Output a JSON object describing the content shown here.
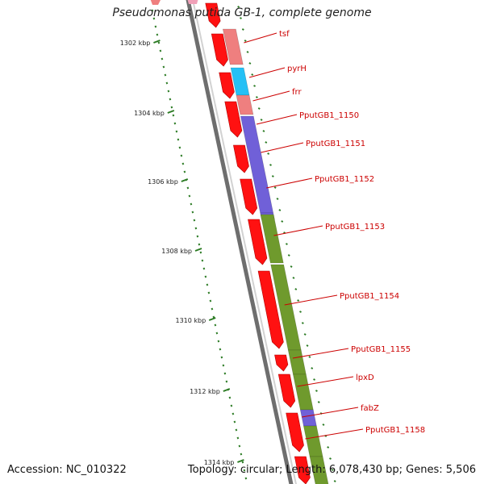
{
  "map": {
    "title": "Pseudomonas putida GB-1, complete genome",
    "accession": "Accession: NC_010322",
    "topology": "Topology: circular; Length: 6,078,430 bp; Genes: 5,506",
    "kbp_labels": [
      "1302 kbp",
      "1304 kbp",
      "1306 kbp",
      "1308 kbp",
      "1310 kbp",
      "1312 kbp",
      "1314 kbp"
    ],
    "colors": {
      "cds": "#ff1111",
      "backbone": "#888888",
      "label": "#cc0000",
      "tick": "#2a7a22",
      "cog_olive": "#6f9a2d",
      "cog_purple": "#7060d8",
      "cog_salmon": "#ef7f7f",
      "cog_cyan": "#25c0f5",
      "cog_pink": "#f0a0b8"
    },
    "genes": [
      {
        "name": "tsf",
        "cog": "cog_salmon"
      },
      {
        "name": "pyrH",
        "cog": "cog_cyan"
      },
      {
        "name": "frr",
        "cog": "cog_salmon"
      },
      {
        "name": "PputGB1_1150",
        "cog": "cog_purple"
      },
      {
        "name": "PputGB1_1151",
        "cog": "cog_purple"
      },
      {
        "name": "PputGB1_1152",
        "cog": "cog_purple"
      },
      {
        "name": "PputGB1_1153",
        "cog": "cog_olive"
      },
      {
        "name": "PputGB1_1154",
        "cog": "cog_olive"
      },
      {
        "name": "PputGB1_1155",
        "cog": "cog_olive"
      },
      {
        "name": "lpxD",
        "cog": "cog_olive"
      },
      {
        "name": "fabZ",
        "cog": "cog_purple"
      },
      {
        "name": "PputGB1_1158",
        "cog": "cog_olive"
      }
    ]
  }
}
